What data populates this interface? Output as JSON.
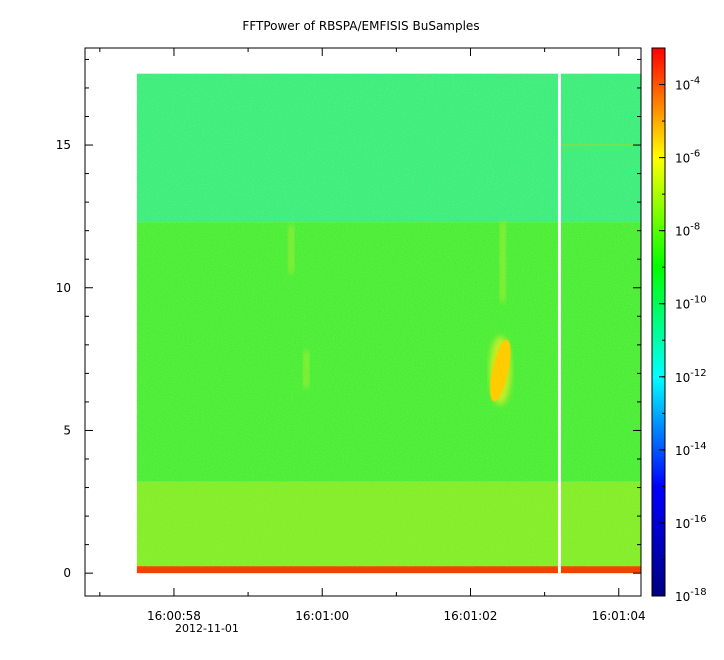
{
  "chart_data": {
    "type": "heatmap",
    "title": "FFTPower of RBSPA/EMFISIS  BuSamples",
    "xlabel": "",
    "ylabel": "",
    "x_date_label": "2012-11-01",
    "x_ticks": [
      "16:00:58",
      "16:01:00",
      "16:01:02",
      "16:01:04"
    ],
    "xlim": [
      "16:00:56.8",
      "16:01:04.3"
    ],
    "data_x_range": [
      "16:00:57.5",
      "16:01:04.3"
    ],
    "gap_x": "16:01:03.2",
    "y_ticks": [
      0,
      5,
      10,
      15
    ],
    "ylim": [
      -0.8,
      18.4
    ],
    "data_y_range": [
      0,
      17.5
    ],
    "colorbar": {
      "scale": "log",
      "range": [
        1e-18,
        0.001
      ],
      "colors": [
        "#000080",
        "#0000ff",
        "#00ffff",
        "#00ff00",
        "#ffff00",
        "#ff0000"
      ],
      "ticks": [
        {
          "value": 1e-18,
          "base": "10",
          "exp": "-18"
        },
        {
          "value": 1e-16,
          "base": "10",
          "exp": "-16"
        },
        {
          "value": 1e-14,
          "base": "10",
          "exp": "-14"
        },
        {
          "value": 1e-12,
          "base": "10",
          "exp": "-12"
        },
        {
          "value": 1e-10,
          "base": "10",
          "exp": "-10"
        },
        {
          "value": 1e-08,
          "base": "10",
          "exp": "-8"
        },
        {
          "value": 1e-06,
          "base": "10",
          "exp": "-6"
        },
        {
          "value": 0.0001,
          "base": "10",
          "exp": "-4"
        }
      ]
    },
    "bands": [
      {
        "y_range": [
          12.3,
          17.5
        ],
        "level": 1e-11,
        "color": "#22ee88"
      },
      {
        "y_range": [
          3.2,
          12.3
        ],
        "level": 1e-10,
        "color": "#33ee33"
      },
      {
        "y_range": [
          0.25,
          3.2
        ],
        "level": 3e-10,
        "color": "#77ee22"
      },
      {
        "y_range": [
          0,
          0.25
        ],
        "level": 1e-05,
        "color": "#ee4400"
      }
    ],
    "features": [
      {
        "x": "16:01:02.2",
        "y_range": [
          6.0,
          8.2
        ],
        "level": 1e-07,
        "color": "#ffcc00"
      }
    ]
  }
}
